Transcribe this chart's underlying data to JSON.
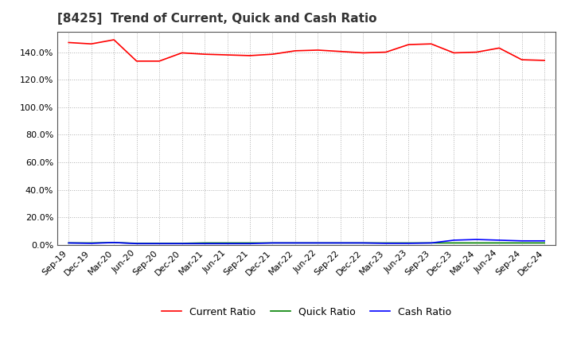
{
  "title": "[8425]  Trend of Current, Quick and Cash Ratio",
  "background_color": "#ffffff",
  "plot_background_color": "#ffffff",
  "grid_color": "#b0b0b0",
  "title_fontsize": 11,
  "tick_fontsize": 8,
  "legend_fontsize": 9,
  "x_labels": [
    "Sep-19",
    "Dec-19",
    "Mar-20",
    "Jun-20",
    "Sep-20",
    "Dec-20",
    "Mar-21",
    "Jun-21",
    "Sep-21",
    "Dec-21",
    "Mar-22",
    "Jun-22",
    "Sep-22",
    "Dec-22",
    "Mar-23",
    "Jun-23",
    "Sep-23",
    "Dec-23",
    "Mar-24",
    "Jun-24",
    "Sep-24",
    "Dec-24"
  ],
  "current_ratio": [
    147.0,
    146.0,
    149.0,
    133.5,
    133.5,
    139.5,
    138.5,
    138.0,
    137.5,
    138.5,
    141.0,
    141.5,
    140.5,
    139.5,
    140.0,
    145.5,
    146.0,
    139.5,
    140.0,
    143.0,
    134.5,
    134.0
  ],
  "quick_ratio": [
    1.5,
    1.5,
    1.8,
    1.2,
    1.2,
    1.2,
    1.5,
    1.5,
    1.5,
    1.5,
    1.5,
    1.5,
    1.5,
    1.5,
    1.5,
    1.5,
    1.5,
    1.5,
    1.5,
    1.5,
    1.5,
    1.5
  ],
  "cash_ratio": [
    1.5,
    1.2,
    1.8,
    1.0,
    1.0,
    1.0,
    1.0,
    1.0,
    1.0,
    1.5,
    1.5,
    1.5,
    1.5,
    1.5,
    1.2,
    1.2,
    1.5,
    3.5,
    4.0,
    3.5,
    3.0,
    3.0
  ],
  "current_color": "#ff0000",
  "quick_color": "#008000",
  "cash_color": "#0000ff",
  "ylim": [
    0,
    155
  ],
  "ytick_values": [
    0,
    20,
    40,
    60,
    80,
    100,
    120,
    140
  ],
  "line_width": 1.2
}
